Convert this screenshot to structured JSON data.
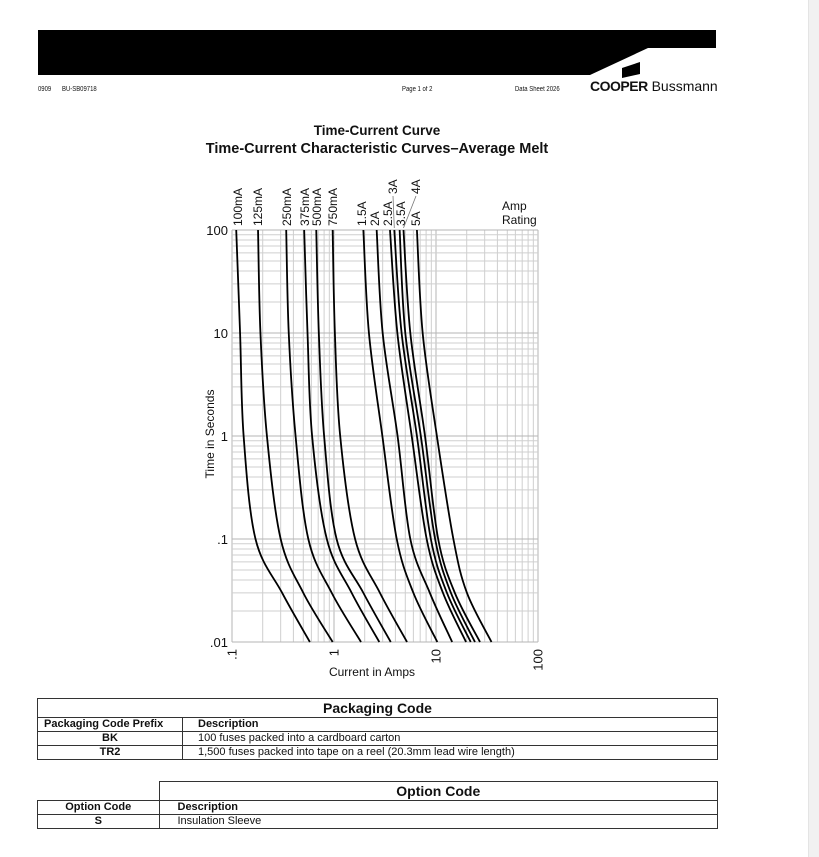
{
  "header": {
    "doc_code": "0909",
    "doc_number": "BU-SB09718",
    "page": "Page 1 of 2",
    "sheet": "Data Sheet 2026",
    "brand_bold": "COOPER",
    "brand_light": "Bussmann"
  },
  "chart_data": {
    "type": "line",
    "title": "Time-Current Curve",
    "subtitle": "Time-Current Characteristic Curves–Average Melt",
    "xlabel": "Current in Amps",
    "ylabel": "Time in Seconds",
    "xscale": "log",
    "yscale": "log",
    "xlim": [
      0.1,
      100
    ],
    "ylim": [
      0.01,
      100
    ],
    "xticks": [
      ".1",
      "1",
      "10",
      "100"
    ],
    "yticks": [
      "100",
      "10",
      "1",
      ".1",
      ".01"
    ],
    "grid": true,
    "legend_title": [
      "Amp",
      "Rating"
    ],
    "time_points": [
      100,
      10,
      1,
      0.1,
      0.03,
      0.01
    ],
    "series": [
      {
        "name": "100mA",
        "current": [
          0.11,
          0.12,
          0.13,
          0.17,
          0.31,
          0.58
        ]
      },
      {
        "name": "125mA",
        "current": [
          0.18,
          0.19,
          0.22,
          0.3,
          0.5,
          0.97
        ]
      },
      {
        "name": "250mA",
        "current": [
          0.34,
          0.36,
          0.42,
          0.56,
          0.95,
          1.84
        ]
      },
      {
        "name": "375mA",
        "current": [
          0.51,
          0.55,
          0.61,
          0.85,
          1.49,
          2.78
        ]
      },
      {
        "name": "500mA",
        "current": [
          0.67,
          0.71,
          0.8,
          1.06,
          1.94,
          3.6
        ]
      },
      {
        "name": "750mA",
        "current": [
          0.97,
          1.02,
          1.15,
          1.61,
          2.82,
          5.2
        ]
      },
      {
        "name": "1.5A",
        "current": [
          1.94,
          2.2,
          2.98,
          4.12,
          6.0,
          10.3
        ]
      },
      {
        "name": "2A",
        "current": [
          2.62,
          3.0,
          4.2,
          5.6,
          8.7,
          14.4
        ]
      },
      {
        "name": "2.5A",
        "current": [
          3.54,
          4.18,
          5.78,
          8.1,
          11.7,
          19.7
        ]
      },
      {
        "name": "3A",
        "current": [
          3.9,
          4.6,
          6.5,
          8.9,
          12.8,
          21.9
        ]
      },
      {
        "name": "3.5A",
        "current": [
          4.4,
          5.0,
          7.1,
          9.8,
          14.0,
          24.1
        ]
      },
      {
        "name": "4A",
        "current": [
          4.8,
          5.6,
          7.8,
          10.5,
          15.3,
          27
        ]
      },
      {
        "name": "5A",
        "current": [
          6.5,
          7.4,
          10.2,
          14.8,
          20.1,
          35
        ]
      }
    ]
  },
  "packaging": {
    "title": "Packaging Code",
    "headers": [
      "Packaging Code Prefix",
      "Description"
    ],
    "rows": [
      [
        "BK",
        "100 fuses packed into a cardboard carton"
      ],
      [
        "TR2",
        "1,500 fuses packed into tape on a reel (20.3mm lead wire length)"
      ]
    ]
  },
  "options": {
    "title": "Option Code",
    "headers": [
      "Option Code",
      "Description"
    ],
    "rows": [
      [
        "S",
        "Insulation Sleeve"
      ]
    ]
  }
}
